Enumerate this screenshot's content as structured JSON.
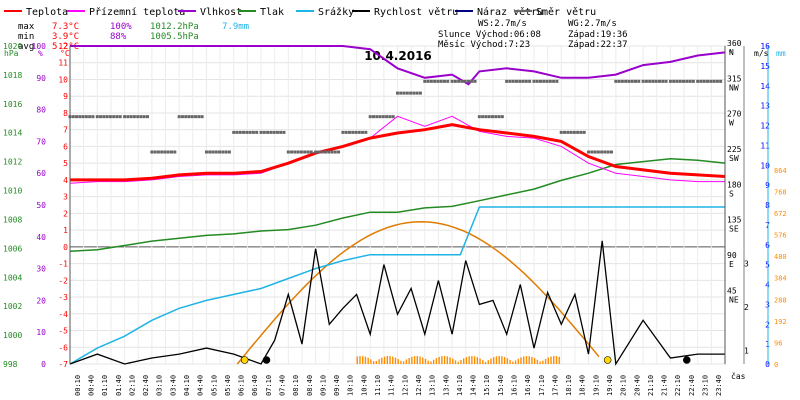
{
  "chart_data": {
    "type": "line",
    "title": "10.4.2016",
    "legend": [
      {
        "label": "Teplota",
        "color": "#ff0000"
      },
      {
        "label": "Přízemní teplota",
        "color": "#ff00ff"
      },
      {
        "label": "Vlhkost",
        "color": "#9900cc"
      },
      {
        "label": "Tlak",
        "color": "#228b22"
      },
      {
        "label": "Srážky",
        "color": "#1fb4e6"
      },
      {
        "label": "Rychlost větru",
        "color": "#000000"
      },
      {
        "label": "Náraz větru",
        "color": "#000080"
      },
      {
        "label": "Směr větru",
        "color": "#666666"
      }
    ],
    "stats": {
      "max_label": "max",
      "max_temp": "7.3°C",
      "max_hum": "100%",
      "max_press": "1012.2hPa",
      "max_rain": "7.9mm",
      "min_label": "min",
      "min_temp": "3.9°C",
      "min_hum": "88%",
      "min_press": "1005.5hPa",
      "avg_label": "avg",
      "avg_temp": "5.2°C",
      "ws": "WS:2.7m/s",
      "wg": "WG:2.7m/s",
      "slunce": "Slunce Východ:06:08",
      "slunce_zapad": "Západ:19:36",
      "mesic": "Měsíc  Východ:7:23",
      "mesic_zapad": "Západ:22:37"
    },
    "axes": {
      "hpa_unit": "hPa",
      "pct_unit": "%",
      "c_unit": "°C",
      "deg_unit": "°",
      "ms_unit": "m/s",
      "mm_unit": "mm",
      "hpa_ticks": [
        "1020",
        "1018",
        "1016",
        "1014",
        "1012",
        "1010",
        "1008",
        "1006",
        "1004",
        "1002",
        "1000",
        "998"
      ],
      "pct_ticks": [
        "100",
        "90",
        "80",
        "70",
        "60",
        "50",
        "40",
        "30",
        "20",
        "10",
        "0"
      ],
      "c_ticks": [
        "12",
        "11",
        "10",
        "9",
        "8",
        "7",
        "6",
        "5",
        "4",
        "3",
        "2",
        "1",
        "0",
        "-1",
        "-2",
        "-3",
        "-4",
        "-5",
        "-6",
        "-7"
      ],
      "dir_ticks": [
        {
          "deg": "360",
          "dir": "N"
        },
        {
          "deg": "315",
          "dir": "NW"
        },
        {
          "deg": "270",
          "dir": "W"
        },
        {
          "deg": "225",
          "dir": "SW"
        },
        {
          "deg": "180",
          "dir": "S"
        },
        {
          "deg": "135",
          "dir": "SE"
        },
        {
          "deg": "90",
          "dir": "E"
        },
        {
          "deg": "45",
          "dir": "NE"
        }
      ],
      "ms_ticks": [
        "16",
        "15",
        "14",
        "13",
        "12",
        "11",
        "10",
        "9",
        "8",
        "7",
        "6",
        "5",
        "4",
        "3",
        "2",
        "1",
        "0"
      ],
      "mm_ticks": [
        "864",
        "768",
        "672",
        "576",
        "480",
        "384",
        "288",
        "192",
        "96",
        "0"
      ],
      "mm_side_ticks": [
        "3",
        "2",
        "1"
      ],
      "cas": "čas",
      "time_ticks": [
        "00:10",
        "00:40",
        "01:10",
        "01:40",
        "02:10",
        "02:40",
        "03:10",
        "03:40",
        "04:10",
        "04:40",
        "05:10",
        "05:40",
        "06:10",
        "06:40",
        "07:10",
        "07:40",
        "08:10",
        "08:40",
        "09:10",
        "09:40",
        "10:10",
        "10:40",
        "11:10",
        "11:40",
        "12:10",
        "12:40",
        "13:10",
        "13:40",
        "14:10",
        "14:40",
        "15:10",
        "15:40",
        "16:10",
        "16:40",
        "17:10",
        "17:40",
        "18:10",
        "18:40",
        "19:10",
        "19:40",
        "20:10",
        "20:40",
        "21:10",
        "21:40",
        "22:10",
        "22:40",
        "23:10",
        "23:40"
      ]
    },
    "series": [
      {
        "name": "Teplota",
        "unit": "°C",
        "hours": [
          0,
          1,
          2,
          3,
          4,
          5,
          6,
          7,
          8,
          9,
          10,
          11,
          12,
          13,
          14,
          15,
          16,
          17,
          18,
          19,
          20,
          21,
          22,
          23,
          24
        ],
        "values": [
          4.0,
          4.0,
          4.0,
          4.1,
          4.3,
          4.4,
          4.4,
          4.5,
          5.0,
          5.6,
          6.0,
          6.5,
          6.8,
          7.0,
          7.3,
          7.0,
          6.8,
          6.6,
          6.3,
          5.4,
          4.8,
          4.6,
          4.4,
          4.3,
          4.2
        ]
      },
      {
        "name": "Přízemní teplota",
        "unit": "°C",
        "hours": [
          0,
          1,
          2,
          3,
          4,
          5,
          6,
          7,
          8,
          9,
          10,
          11,
          12,
          13,
          14,
          15,
          16,
          17,
          18,
          19,
          20,
          21,
          22,
          23,
          24
        ],
        "values": [
          3.8,
          3.9,
          3.9,
          4.0,
          4.2,
          4.3,
          4.3,
          4.4,
          5.0,
          5.6,
          6.0,
          6.5,
          7.8,
          7.2,
          7.8,
          6.9,
          6.6,
          6.5,
          6.0,
          5.0,
          4.4,
          4.2,
          4.0,
          3.9,
          3.9
        ]
      },
      {
        "name": "Vlhkost",
        "unit": "%",
        "hours": [
          0,
          2,
          4,
          6,
          8,
          10,
          11,
          12,
          13,
          14,
          14.6,
          15,
          16,
          17,
          18,
          19,
          20,
          21,
          22,
          23,
          24
        ],
        "values": [
          100,
          100,
          100,
          100,
          100,
          100,
          99,
          93,
          90,
          91,
          88,
          92,
          93,
          92,
          90,
          90,
          91,
          94,
          95,
          97,
          98
        ]
      },
      {
        "name": "Tlak",
        "unit": "hPa",
        "hours": [
          0,
          1,
          2,
          3,
          4,
          5,
          6,
          7,
          8,
          9,
          10,
          11,
          12,
          13,
          14,
          15,
          16,
          17,
          18,
          19,
          20,
          21,
          22,
          23,
          24
        ],
        "values": [
          1005.8,
          1005.9,
          1006.2,
          1006.5,
          1006.7,
          1006.9,
          1007.0,
          1007.2,
          1007.3,
          1007.6,
          1008.1,
          1008.5,
          1008.5,
          1008.8,
          1008.9,
          1009.3,
          1009.7,
          1010.1,
          1010.7,
          1011.2,
          1011.8,
          1012.0,
          1012.2,
          1012.1,
          1011.9
        ]
      },
      {
        "name": "Srážky",
        "unit": "mm",
        "hours": [
          0,
          1,
          2,
          3,
          4,
          5,
          6,
          7,
          8,
          9,
          10,
          11,
          12,
          13,
          14,
          14.3,
          15,
          16,
          17,
          18,
          19,
          20,
          21,
          22,
          23,
          24
        ],
        "values": [
          0,
          0.8,
          1.4,
          2.2,
          2.8,
          3.2,
          3.5,
          3.8,
          4.3,
          4.8,
          5.2,
          5.5,
          5.5,
          5.5,
          5.5,
          5.5,
          7.9,
          7.9,
          7.9,
          7.9,
          7.9,
          7.9,
          7.9,
          7.9,
          7.9,
          7.9
        ]
      },
      {
        "name": "Rychlost větru",
        "unit": "m/s",
        "hours": [
          0,
          1,
          2,
          3,
          4,
          5,
          6,
          7,
          7.5,
          8,
          8.5,
          9,
          9.5,
          10,
          10.5,
          11,
          11.5,
          12,
          12.5,
          13,
          13.5,
          14,
          14.5,
          15,
          15.5,
          16,
          16.5,
          17,
          17.5,
          18,
          18.5,
          19,
          19.5,
          20,
          21,
          22,
          23,
          24
        ],
        "values": [
          0,
          0.5,
          0,
          0.3,
          0.5,
          0.8,
          0.5,
          0,
          1.2,
          3.5,
          1,
          5.8,
          2,
          2.8,
          3.5,
          1.5,
          5,
          2.5,
          3.8,
          1.5,
          4.2,
          1.5,
          5.2,
          3,
          3.2,
          1.5,
          4,
          0.8,
          3.6,
          2,
          3.5,
          0.5,
          6.2,
          0,
          2.2,
          0.3,
          0.5,
          0.5
        ]
      },
      {
        "name": "Směr větru",
        "unit": "°",
        "hours": [
          0,
          1,
          2,
          3,
          4,
          5,
          6,
          7,
          8,
          9,
          10,
          11,
          12,
          13,
          14,
          15,
          16,
          17,
          18,
          19,
          20,
          21,
          22,
          23
        ],
        "values": [
          270,
          270,
          270,
          225,
          270,
          225,
          250,
          250,
          225,
          225,
          250,
          270,
          300,
          315,
          315,
          270,
          315,
          315,
          250,
          225,
          315,
          315,
          315,
          315
        ]
      }
    ],
    "sun_elevation": {
      "rise_hour": 6.13,
      "set_hour": 19.6,
      "noon_hour": 13.0,
      "peak_deg": 90
    },
    "solar_markers": [
      {
        "hour": 6.4,
        "kind": "sun",
        "color": "#ffd700"
      },
      {
        "hour": 7.2,
        "kind": "moon",
        "color": "#000000"
      },
      {
        "hour": 19.7,
        "kind": "sun",
        "color": "#ffd700"
      },
      {
        "hour": 22.6,
        "kind": "moon",
        "color": "#000000"
      }
    ],
    "xlim": [
      0,
      24
    ]
  }
}
